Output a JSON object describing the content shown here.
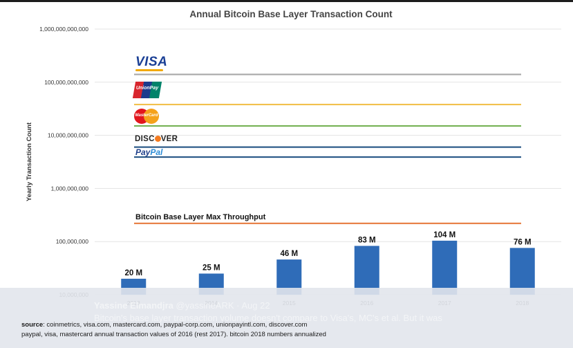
{
  "chart_data": {
    "type": "bar",
    "title": "Annual Bitcoin Base Layer Transaction Count",
    "ylabel": "Yearly Transaction Count",
    "xlabel": "",
    "y_scale": "log",
    "ylim": [
      10000000,
      1000000000000
    ],
    "y_tick_labels": [
      "1,000,000,000,000",
      "100,000,000,000",
      "10,000,000,000",
      "1,000,000,000",
      "100,000,000",
      "10,000,000"
    ],
    "y_tick_values": [
      1000000000000,
      100000000000,
      10000000000,
      1000000000,
      100000000,
      10000000
    ],
    "grid": true,
    "categories": [
      "2013",
      "2014",
      "2015",
      "2016",
      "2017",
      "2018"
    ],
    "values": [
      20000000,
      25000000,
      46000000,
      83000000,
      104000000,
      76000000
    ],
    "data_labels": [
      "20 M",
      "25 M",
      "46 M",
      "83 M",
      "104 M",
      "76 M"
    ],
    "bar_color": "#2f6cb8",
    "reference_lines": [
      {
        "id": "visa",
        "value": 140000000000,
        "color": "#a8a8a8",
        "logo": "visa-logo"
      },
      {
        "id": "unionpay",
        "value": 38000000000,
        "color": "#f2c14e",
        "logo": "unionpay-logo"
      },
      {
        "id": "mastercard",
        "value": 15000000000,
        "color": "#77b255",
        "logo": "mastercard-logo"
      },
      {
        "id": "discover",
        "value": 6000000000,
        "color": "#2e5c8a",
        "logo": "discover-logo"
      },
      {
        "id": "paypal",
        "value": 3900000000,
        "color": "#2e5c8a",
        "logo": "paypal-logo"
      },
      {
        "id": "bitcoin-max",
        "value": 220000000,
        "color": "#e8834a",
        "label": "Bitcoin Base Layer Max Throughput"
      }
    ]
  },
  "logos": {
    "visa": "VISA",
    "unionpay": "UnionPay",
    "mastercard": "MasterCard",
    "discover_pre": "DISC",
    "discover_post": "VER",
    "paypal_pre": "Pay",
    "paypal_post": "Pal"
  },
  "overlay": {
    "author": "Yassine Elmandjra",
    "handle_time": " @yassineARK · Aug 22",
    "text": "Bitcoin's base layer transaction volume doesn't compare to Visa's, MC's et al. But it was"
  },
  "source": {
    "label": "source",
    "line1": ": coinmetrics, visa.com, mastercard.com, paypal-corp.com, unionpayintl.com, discover.com",
    "line2": "paypal, visa, mastercard annual transaction values of 2016 (rest 2017). bitcoin 2018 numbers annualized"
  }
}
